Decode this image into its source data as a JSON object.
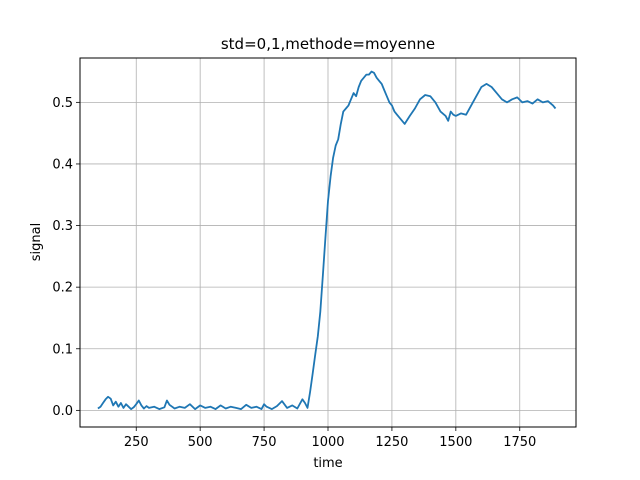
{
  "chart_data": {
    "type": "line",
    "title": "std=0,1,methode=moyenne",
    "xlabel": "time",
    "ylabel": "signal",
    "xlim": [
      30,
      1970
    ],
    "ylim": [
      -0.027,
      0.572
    ],
    "xticks": [
      250,
      500,
      750,
      1000,
      1250,
      1500,
      1750
    ],
    "yticks": [
      0.0,
      0.1,
      0.2,
      0.3,
      0.4,
      0.5
    ],
    "ytick_labels": [
      "0.0",
      "0.1",
      "0.2",
      "0.3",
      "0.4",
      "0.5"
    ],
    "grid": true,
    "color": "#1f77b4",
    "series": [
      {
        "x": [
          100,
          110,
          120,
          130,
          140,
          150,
          160,
          170,
          180,
          190,
          200,
          210,
          220,
          230,
          240,
          250,
          260,
          270,
          280,
          290,
          300,
          320,
          340,
          360,
          370,
          380,
          400,
          420,
          440,
          460,
          480,
          500,
          520,
          540,
          560,
          580,
          600,
          620,
          640,
          660,
          680,
          700,
          720,
          740,
          750,
          760,
          780,
          800,
          820,
          840,
          860,
          880,
          900,
          910,
          920,
          930,
          940,
          950,
          960,
          970,
          980,
          990,
          1000,
          1010,
          1020,
          1030,
          1040,
          1050,
          1060,
          1070,
          1080,
          1090,
          1100,
          1110,
          1120,
          1130,
          1140,
          1150,
          1160,
          1170,
          1180,
          1190,
          1200,
          1210,
          1220,
          1230,
          1240,
          1250,
          1260,
          1270,
          1280,
          1290,
          1300,
          1320,
          1340,
          1360,
          1380,
          1400,
          1420,
          1440,
          1460,
          1470,
          1480,
          1490,
          1500,
          1520,
          1540,
          1560,
          1580,
          1600,
          1620,
          1640,
          1660,
          1680,
          1700,
          1720,
          1740,
          1760,
          1780,
          1800,
          1820,
          1840,
          1860,
          1880,
          1890
        ],
        "y": [
          0.003,
          0.006,
          0.012,
          0.018,
          0.022,
          0.019,
          0.008,
          0.014,
          0.006,
          0.012,
          0.004,
          0.01,
          0.006,
          0.002,
          0.005,
          0.01,
          0.016,
          0.008,
          0.003,
          0.007,
          0.004,
          0.006,
          0.002,
          0.005,
          0.016,
          0.009,
          0.003,
          0.006,
          0.004,
          0.01,
          0.002,
          0.008,
          0.004,
          0.006,
          0.002,
          0.008,
          0.003,
          0.006,
          0.004,
          0.002,
          0.009,
          0.004,
          0.006,
          0.002,
          0.01,
          0.006,
          0.002,
          0.007,
          0.015,
          0.004,
          0.008,
          0.003,
          0.018,
          0.012,
          0.004,
          0.03,
          0.06,
          0.09,
          0.12,
          0.16,
          0.22,
          0.28,
          0.34,
          0.38,
          0.41,
          0.43,
          0.44,
          0.465,
          0.485,
          0.49,
          0.495,
          0.505,
          0.515,
          0.51,
          0.525,
          0.535,
          0.54,
          0.545,
          0.545,
          0.55,
          0.548,
          0.54,
          0.535,
          0.53,
          0.52,
          0.51,
          0.5,
          0.495,
          0.485,
          0.48,
          0.475,
          0.47,
          0.465,
          0.478,
          0.49,
          0.505,
          0.512,
          0.51,
          0.5,
          0.485,
          0.478,
          0.47,
          0.485,
          0.48,
          0.478,
          0.482,
          0.48,
          0.495,
          0.51,
          0.525,
          0.53,
          0.525,
          0.515,
          0.505,
          0.5,
          0.505,
          0.508,
          0.5,
          0.502,
          0.498,
          0.505,
          0.5,
          0.502,
          0.495,
          0.49
        ]
      }
    ]
  }
}
